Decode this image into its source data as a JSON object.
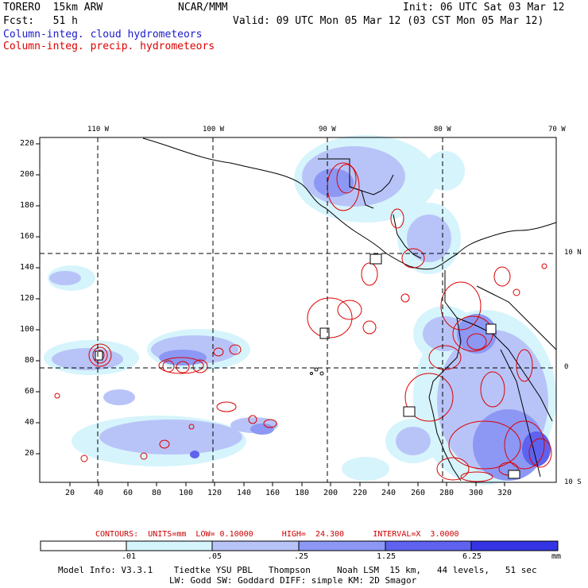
{
  "header": {
    "model": "TORERO  15km ARW",
    "org": "NCAR/MMM",
    "init": "Init: 06 UTC Sat 03 Mar 12",
    "fcst": "Fcst:   51 h",
    "valid": "Valid: 09 UTC Mon 05 Mar 12 (03 CST Mon 05 Mar 12)"
  },
  "fields": {
    "cloud": "Column-integ. cloud hydrometeors",
    "precip": "Column-integ. precip. hydrometeors"
  },
  "colors": {
    "frame": "#000000",
    "contour": "#dd0000",
    "field_text": "#1a1acc"
  },
  "map": {
    "lon_labels": [
      "110 W",
      "100 W",
      "90 W",
      "80 W",
      "70 W"
    ],
    "lat_labels": [
      "10 N",
      "0",
      "10 S"
    ],
    "y_ticks": [
      "220",
      "200",
      "180",
      "160",
      "140",
      "120",
      "100",
      "80",
      "60",
      "40",
      "20"
    ],
    "x_ticks": [
      "20",
      "40",
      "60",
      "80",
      "100",
      "120",
      "140",
      "160",
      "180",
      "200",
      "220",
      "240",
      "260",
      "280",
      "300",
      "320"
    ]
  },
  "contour_info": {
    "label": "CONTOURS:  UNITS=mm  LOW= 0.10000      HIGH=  24.300      INTERVAL=X  3.0000"
  },
  "colorbar": {
    "unit": "mm",
    "levels": [
      ".01",
      ".05",
      ".25",
      "1.25",
      "6.25"
    ],
    "colors": [
      "#ffffff",
      "#d6f4fc",
      "#b8c4f8",
      "#8c98f4",
      "#5e62ee",
      "#3434e4"
    ]
  },
  "footer": {
    "line1": "Model Info: V3.3.1    Tiedtke YSU PBL   Thompson     Noah LSM  15 km,   44 levels,   51 sec",
    "line2": "LW: Godd SW: Goddard DIFF: simple KM: 2D Smagor"
  }
}
